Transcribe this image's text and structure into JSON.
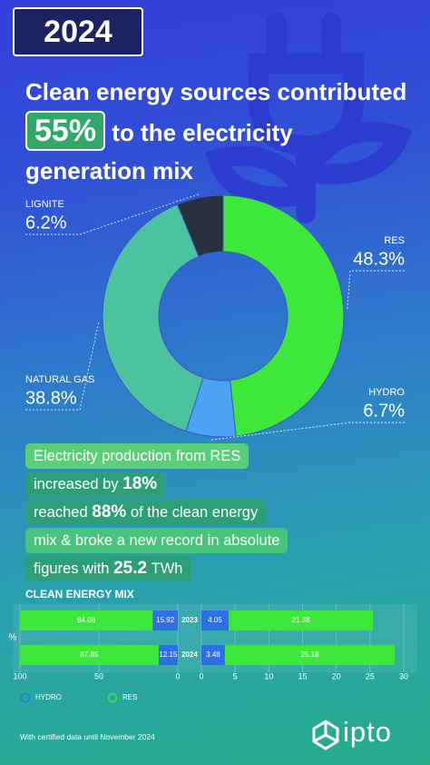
{
  "header": {
    "year": "2024"
  },
  "headline": {
    "before": "Clean energy sources contributed",
    "highlight": "55%",
    "after": "to the electricity generation mix"
  },
  "info": {
    "lines": [
      [
        {
          "text": "Electricity production from RES"
        }
      ],
      [
        {
          "text": "increased by"
        },
        {
          "text": "18%",
          "bold": true
        }
      ],
      [
        {
          "text": "reached"
        },
        {
          "text": "88%",
          "bold": true
        },
        {
          "text": "of the clean energy"
        }
      ],
      [
        {
          "text": "mix & broke a new record in absolute"
        }
      ],
      [
        {
          "text": "figures with"
        },
        {
          "text": "25.2",
          "bold": true
        },
        {
          "text": "TWh"
        }
      ]
    ]
  },
  "chart_data": [
    {
      "type": "donut",
      "categories": [
        "RES",
        "HYDRO",
        "NATURAL GAS",
        "LIGNITE"
      ],
      "values": [
        48.3,
        6.7,
        38.8,
        6.2
      ],
      "value_labels": [
        "48.3%",
        "6.7%",
        "38.8%",
        "6.2%"
      ],
      "colors": [
        "#3ee83a",
        "#4ba4f2",
        "#4cc39f",
        "#28323e"
      ]
    },
    {
      "type": "butterfly_bar",
      "title": "CLEAN ENERGY MIX",
      "ylabel": "%",
      "categories": [
        "2023",
        "2024"
      ],
      "series": [
        {
          "name": "HYDRO",
          "color": "#2f6fe6",
          "values": [
            15.92,
            12.15
          ],
          "x2values": [
            4.05,
            3.48
          ]
        },
        {
          "name": "RES",
          "color": "#3ee83a",
          "values": [
            84.08,
            87.85
          ],
          "x2values": [
            21.38,
            25.18
          ]
        }
      ],
      "xlim": [
        100,
        0
      ],
      "xticks": [
        100,
        50,
        0
      ],
      "x2lim": [
        0,
        30
      ],
      "x2ticks": [
        0,
        5,
        10,
        15,
        20,
        25,
        30
      ],
      "grid": true
    }
  ],
  "footer": {
    "note": "With certified data until November 2024",
    "logo": "ipto"
  }
}
